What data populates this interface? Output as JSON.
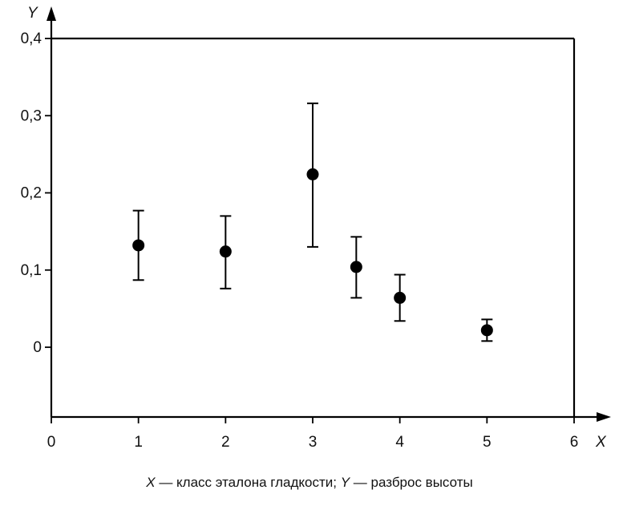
{
  "chart_data": {
    "type": "scatter",
    "title": "",
    "xlabel": "X",
    "ylabel": "Y",
    "xlim": [
      0,
      6
    ],
    "ylim": [
      -0.09,
      0.4
    ],
    "x_ticks": [
      0,
      1,
      2,
      3,
      4,
      5,
      6
    ],
    "x_tick_labels": [
      "0",
      "1",
      "2",
      "3",
      "4",
      "5",
      "6"
    ],
    "y_ticks": [
      0,
      0.1,
      0.2,
      0.3,
      0.4
    ],
    "y_tick_labels": [
      "0",
      "0,1",
      "0,2",
      "0,3",
      "0,4"
    ],
    "grid": false,
    "points": [
      {
        "x": 1,
        "y": 0.132,
        "y_low": 0.087,
        "y_high": 0.177
      },
      {
        "x": 2,
        "y": 0.124,
        "y_low": 0.076,
        "y_high": 0.17
      },
      {
        "x": 3,
        "y": 0.224,
        "y_low": 0.13,
        "y_high": 0.316
      },
      {
        "x": 3.5,
        "y": 0.104,
        "y_low": 0.064,
        "y_high": 0.143
      },
      {
        "x": 4,
        "y": 0.064,
        "y_low": 0.034,
        "y_high": 0.094
      },
      {
        "x": 5,
        "y": 0.022,
        "y_low": 0.008,
        "y_high": 0.036
      }
    ],
    "colors": {
      "marker": "#000000",
      "axis": "#000000"
    }
  },
  "caption": {
    "x_symbol": "X",
    "x_text": " — класс эталона гладкости; ",
    "y_symbol": "Y",
    "y_text": " — разброс высоты"
  }
}
